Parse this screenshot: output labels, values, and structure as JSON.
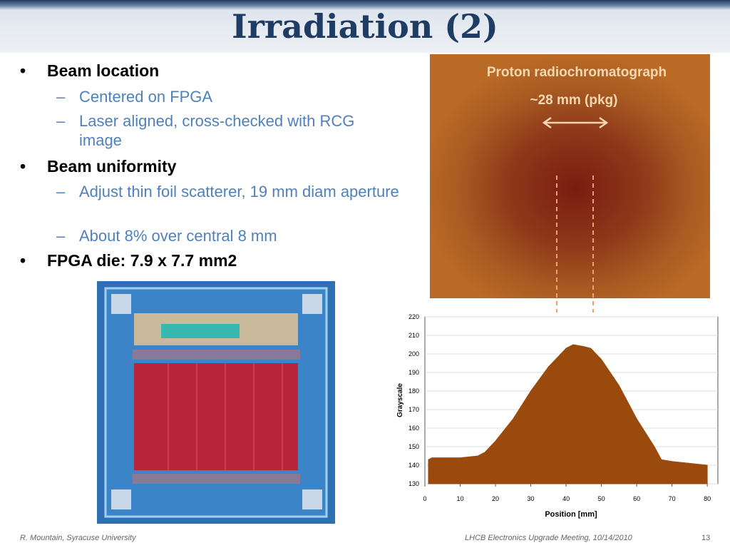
{
  "header": {
    "title": "Irradiation (2)"
  },
  "bullets": [
    {
      "text": "Beam location",
      "sub": [
        "Centered on FPGA",
        "Laser aligned, cross-checked with RCG image"
      ]
    },
    {
      "text": "Beam uniformity",
      "sub": [
        "Adjust thin foil scatterer, 19 mm diam aperture",
        "About 8% over central 8 mm"
      ]
    },
    {
      "text": "FPGA die: 7.9 x 7.7 mm2",
      "sub": []
    }
  ],
  "photo": {
    "caption": "Proton radiochromatograph",
    "scale": "~28 mm (pkg)"
  },
  "chart_data": {
    "type": "area",
    "xlabel": "Position [mm]",
    "ylabel": "Grayscale",
    "x": [
      1,
      2,
      5,
      10,
      15,
      17,
      20,
      25,
      30,
      35,
      38,
      40,
      42,
      45,
      47,
      50,
      55,
      60,
      65,
      67,
      70,
      75,
      80
    ],
    "values": [
      143,
      144,
      144,
      144,
      145,
      147,
      153,
      165,
      180,
      193,
      199,
      203,
      205,
      204,
      203,
      197,
      183,
      165,
      150,
      143,
      142,
      141,
      140
    ],
    "color": "#9a4a0c",
    "xlim": [
      0,
      83
    ],
    "ylim": [
      130,
      220
    ],
    "xticks": [
      0,
      10,
      20,
      30,
      40,
      50,
      60,
      70,
      80
    ],
    "yticks": [
      130,
      140,
      150,
      160,
      170,
      180,
      190,
      200,
      210,
      220
    ],
    "grid": true
  },
  "footer": {
    "left": "R. Mountain, Syracuse University",
    "center": "LHCB Electronics Upgrade Meeting, 10/14/2010",
    "page": "13"
  }
}
